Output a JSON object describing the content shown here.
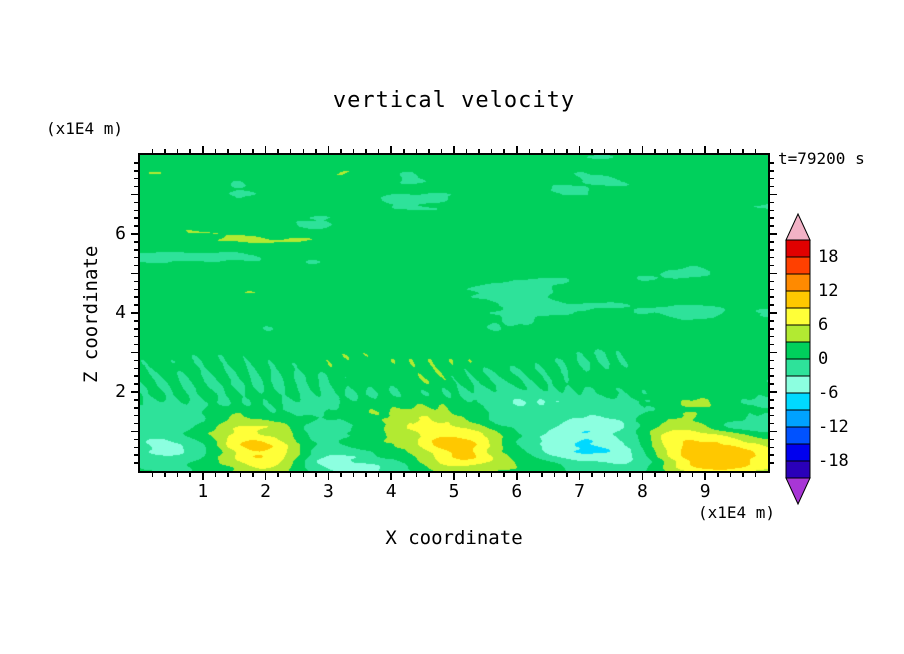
{
  "figure": {
    "title": "vertical velocity",
    "time_label": "t=79200 s",
    "left_unit_label": "(x1E4 m)",
    "bottom_unit_label": "(x1E4 m)"
  },
  "axes": {
    "x_label": "X coordinate",
    "y_label": "Z coordinate",
    "xlim": [
      0,
      10
    ],
    "ylim": [
      0,
      8
    ],
    "x_tick_labels": [
      1,
      2,
      3,
      4,
      5,
      6,
      7,
      8,
      9
    ],
    "y_tick_labels": [
      2,
      4,
      6
    ],
    "minor_tick_step": 0.2,
    "major_tick_step": 1
  },
  "colorbar": {
    "tick_labels": [
      "18",
      "12",
      "6",
      "0",
      "-6",
      "-12",
      "-18"
    ]
  },
  "chart_data": {
    "type": "filled_contour",
    "title": "vertical velocity",
    "xlabel": "X coordinate",
    "ylabel": "Z coordinate",
    "x_unit": "(x1E4 m)",
    "y_unit": "(x1E4 m)",
    "time_annotation": "t=79200 s",
    "xlim": [
      0,
      10
    ],
    "ylim": [
      0,
      8
    ],
    "contour_interval": 3,
    "levels": [
      -21,
      -18,
      -15,
      -12,
      -9,
      -6,
      -3,
      0,
      3,
      6,
      9,
      12,
      15,
      18,
      21
    ],
    "band_colors": [
      "#2a00b9",
      "#0000ee",
      "#0052ff",
      "#00a2ff",
      "#00d9ff",
      "#8cffe0",
      "#2ee29a",
      "#00d05c",
      "#b2ea32",
      "#ffff38",
      "#ffc800",
      "#ff8a00",
      "#ff4000",
      "#e10000"
    ],
    "under_color": "#a836d6",
    "over_color": "#f2b2c6",
    "field_summary": "vertical velocity mostly between -3 and 3 over the whole domain (two interleaved green bands, horizontally elongated streaks); fine wave striations near z=2-3; stronger anomalies below z=2: negative patches -6..-3 (pale cyan) near x=0.5, 3.3, 6.5-7.5 and positive patches 3..9 (yellow-green with yellow cores) near x=2, 5.2, 9-10"
  }
}
